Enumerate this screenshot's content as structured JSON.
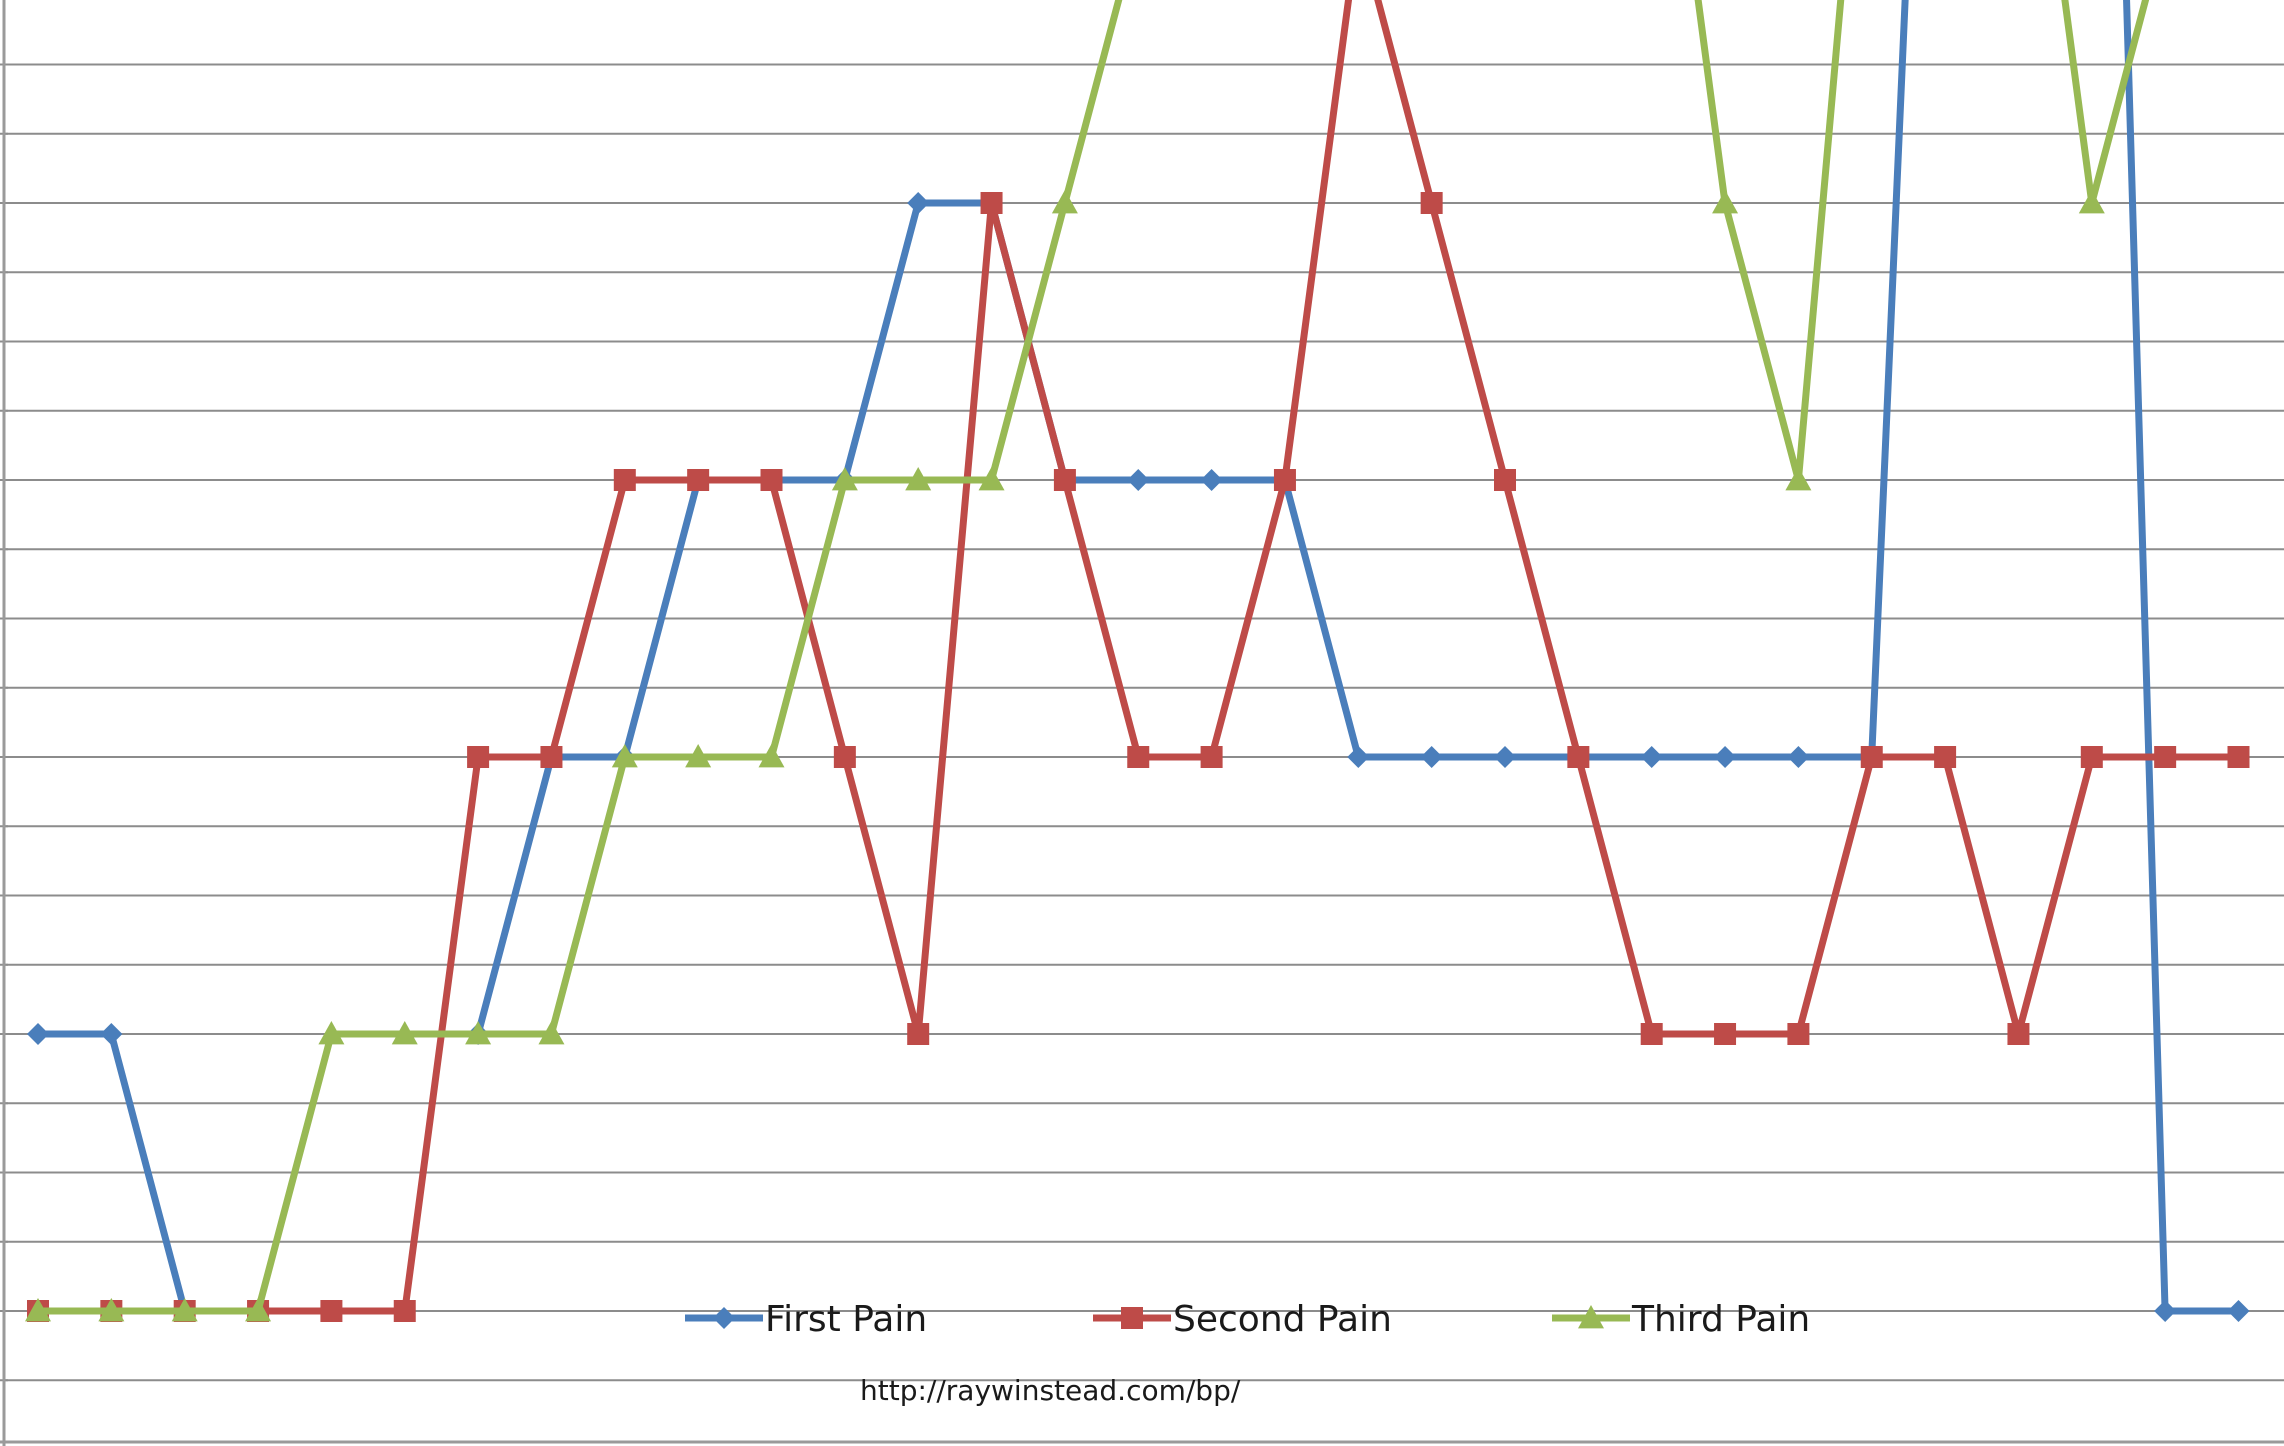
{
  "chart_data": {
    "type": "line",
    "title": "",
    "xlabel": "",
    "ylabel": "",
    "x": [
      1,
      2,
      3,
      4,
      5,
      6,
      7,
      8,
      9,
      10,
      11,
      12,
      13,
      14,
      15,
      16,
      17,
      18,
      19,
      20,
      21,
      22,
      23,
      24,
      25,
      26,
      27,
      28,
      29,
      30,
      31
    ],
    "ylim": [
      -1,
      18
    ],
    "grid": true,
    "legend_position": "bottom",
    "series": [
      {
        "name": "First Pain",
        "color": "#4a7ebb",
        "marker": "diamond",
        "values": [
          2,
          2,
          0,
          0,
          null,
          null,
          2,
          4,
          4,
          6,
          6,
          6,
          8,
          8,
          6,
          6,
          6,
          6,
          4,
          4,
          4,
          4,
          4,
          4,
          4,
          4,
          16,
          14,
          18,
          0,
          0
        ]
      },
      {
        "name": "Second Pain",
        "color": "#be4b48",
        "marker": "square",
        "values": [
          0,
          0,
          0,
          0,
          0,
          0,
          4,
          4,
          6,
          6,
          6,
          4,
          2,
          8,
          6,
          4,
          4,
          6,
          10,
          8,
          6,
          4,
          2,
          2,
          2,
          4,
          4,
          2,
          4,
          4,
          4
        ]
      },
      {
        "name": "Third Pain",
        "color": "#98b954",
        "marker": "triangle",
        "values": [
          0,
          0,
          0,
          0,
          2,
          2,
          2,
          2,
          4,
          4,
          4,
          6,
          6,
          6,
          8,
          10,
          10,
          12,
          12,
          14,
          14,
          12,
          12,
          8,
          6,
          12,
          12,
          12,
          8,
          10,
          10
        ]
      }
    ],
    "annotation": "http://raywinstead.com/bp/"
  }
}
